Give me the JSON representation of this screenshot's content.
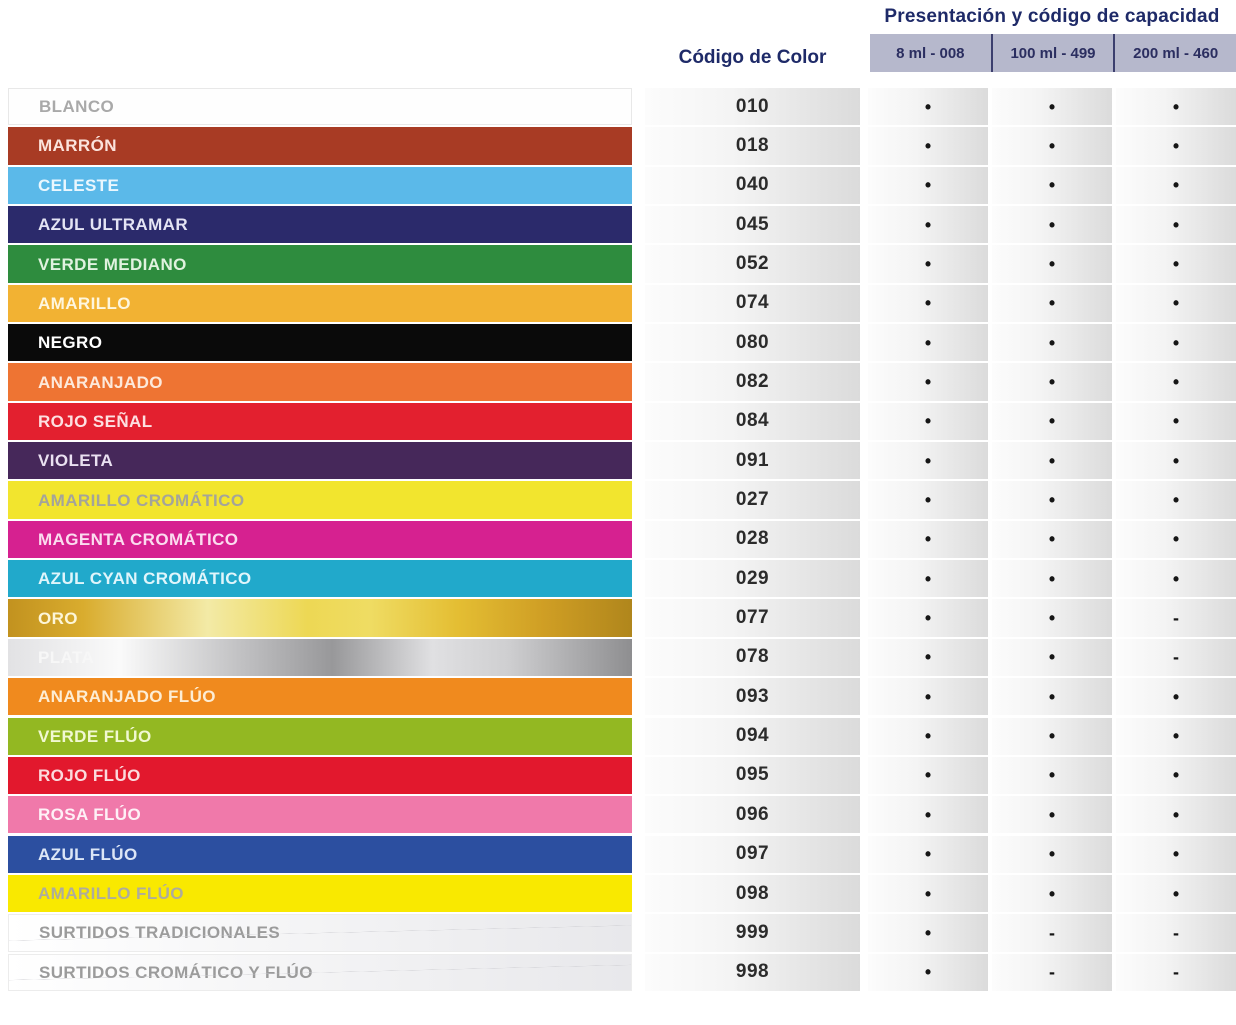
{
  "header": {
    "capacity_title": "Presentación y código de capacidad",
    "code_title": "Código de Color",
    "capacity_columns": [
      "8 ml - 008",
      "100 ml - 499",
      "200 ml - 460"
    ]
  },
  "palette": {
    "header-text": "#1E2A68",
    "band-bg": "#B6B8CC",
    "band-text": "#2B2E60",
    "band-divider": "#3C3F6E"
  },
  "rows": [
    {
      "name": "BLANCO",
      "code": "010",
      "variant": "white",
      "bg": "#FEFEFE",
      "text": "#A9A9A9",
      "avail": [
        "•",
        "•",
        "•"
      ]
    },
    {
      "name": "MARRÓN",
      "code": "018",
      "variant": "solid",
      "bg": "#A83B24",
      "text": "#FBE3DC",
      "avail": [
        "•",
        "•",
        "•"
      ]
    },
    {
      "name": "CELESTE",
      "code": "040",
      "variant": "solid",
      "bg": "#5BB9E9",
      "text": "#EAF7FE",
      "avail": [
        "•",
        "•",
        "•"
      ]
    },
    {
      "name": "AZUL ULTRAMAR",
      "code": "045",
      "variant": "solid",
      "bg": "#2B2A6B",
      "text": "#E4E4F4",
      "avail": [
        "•",
        "•",
        "•"
      ]
    },
    {
      "name": "VERDE MEDIANO",
      "code": "052",
      "variant": "solid",
      "bg": "#2E8C3E",
      "text": "#E0F2DF",
      "avail": [
        "•",
        "•",
        "•"
      ]
    },
    {
      "name": "AMARILLO",
      "code": "074",
      "variant": "solid",
      "bg": "#F2B233",
      "text": "#FEF6DE",
      "avail": [
        "•",
        "•",
        "•"
      ]
    },
    {
      "name": "NEGRO",
      "code": "080",
      "variant": "solid",
      "bg": "#0A0A0A",
      "text": "#FFFFFF",
      "avail": [
        "•",
        "•",
        "•"
      ]
    },
    {
      "name": "ANARANJADO",
      "code": "082",
      "variant": "solid",
      "bg": "#EE7433",
      "text": "#FDE9DB",
      "avail": [
        "•",
        "•",
        "•"
      ]
    },
    {
      "name": "ROJO SEÑAL",
      "code": "084",
      "variant": "solid",
      "bg": "#E3202F",
      "text": "#FDE0E1",
      "avail": [
        "•",
        "•",
        "•"
      ]
    },
    {
      "name": "VIOLETA",
      "code": "091",
      "variant": "solid",
      "bg": "#46285A",
      "text": "#EAE1F1",
      "avail": [
        "•",
        "•",
        "•"
      ]
    },
    {
      "name": "AMARILLO CROMÁTICO",
      "code": "027",
      "variant": "solid",
      "bg": "#F2E52E",
      "text": "#A4A49A",
      "avail": [
        "•",
        "•",
        "•"
      ]
    },
    {
      "name": "MAGENTA CROMÁTICO",
      "code": "028",
      "variant": "solid",
      "bg": "#D62190",
      "text": "#FBDCEF",
      "avail": [
        "•",
        "•",
        "•"
      ]
    },
    {
      "name": "AZUL CYAN CROMÁTICO",
      "code": "029",
      "variant": "solid",
      "bg": "#21A9CB",
      "text": "#E0F5FB",
      "avail": [
        "•",
        "•",
        "•"
      ]
    },
    {
      "name": "ORO",
      "code": "077",
      "variant": "gold",
      "text": "#FDF6D8",
      "gradient": [
        "#C2921F 0%",
        "#D9AC2E 12%",
        "#F3EAA6 32%",
        "#EDD854 48%",
        "#EFDC63 58%",
        "#E4BE33 72%",
        "#CF9E24 86%",
        "#B0861C 100%"
      ],
      "avail": [
        "•",
        "•",
        "-"
      ]
    },
    {
      "name": "PLATA",
      "code": "078",
      "variant": "silver",
      "text": "#F7F7F7",
      "gradient": [
        "#E2E2E4 0%",
        "#FAFAFA 18%",
        "#BFBFC1 38%",
        "#98989A 52%",
        "#E0E0E2 68%",
        "#CFCFD1 80%",
        "#8E8E90 100%"
      ],
      "avail": [
        "•",
        "•",
        "-"
      ]
    },
    {
      "name": "ANARANJADO FLÚO",
      "code": "093",
      "variant": "solid",
      "bg": "#F08A1E",
      "text": "#FDEDD4",
      "avail": [
        "•",
        "•",
        "•"
      ]
    },
    {
      "name": "VERDE FLÚO",
      "code": "094",
      "variant": "solid",
      "bg": "#93B822",
      "text": "#F1F8D2",
      "avail": [
        "•",
        "•",
        "•"
      ]
    },
    {
      "name": "ROJO FLÚO",
      "code": "095",
      "variant": "solid",
      "bg": "#E2182D",
      "text": "#FBDADD",
      "avail": [
        "•",
        "•",
        "•"
      ]
    },
    {
      "name": "ROSA FLÚO",
      "code": "096",
      "variant": "solid",
      "bg": "#F079AA",
      "text": "#FEF0F6",
      "avail": [
        "•",
        "•",
        "•"
      ]
    },
    {
      "name": "AZUL FLÚO",
      "code": "097",
      "variant": "solid",
      "bg": "#2C4FA0",
      "text": "#DCE6F6",
      "avail": [
        "•",
        "•",
        "•"
      ]
    },
    {
      "name": "AMARILLO FLÚO",
      "code": "098",
      "variant": "solid",
      "bg": "#F9E900",
      "text": "#AEAC9C",
      "avail": [
        "•",
        "•",
        "•"
      ]
    },
    {
      "name": "SURTIDOS TRADICIONALES",
      "code": "999",
      "variant": "assorted",
      "text": "#9B9B9B",
      "avail": [
        "•",
        "-",
        "-"
      ]
    },
    {
      "name": "SURTIDOS CROMÁTICO Y FLÚO",
      "code": "998",
      "variant": "assorted",
      "text": "#9B9B9B",
      "avail": [
        "•",
        "-",
        "-"
      ]
    }
  ]
}
